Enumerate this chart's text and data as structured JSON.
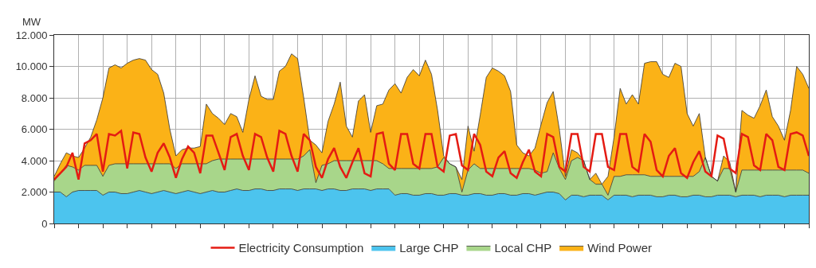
{
  "chart_data": {
    "type": "area",
    "stacked": true,
    "ylabel": "MW",
    "categories": [
      null,
      null,
      null,
      null,
      null,
      null,
      null,
      null,
      null,
      null,
      null,
      null,
      null,
      null,
      null,
      null,
      null,
      null,
      null,
      null,
      null,
      null,
      null,
      null,
      null,
      null,
      null,
      null,
      null,
      null,
      null,
      null,
      null,
      null,
      null,
      null,
      null,
      null,
      null,
      null,
      null,
      null,
      null,
      null,
      null,
      null,
      null,
      null,
      null,
      null,
      null,
      null,
      null,
      null,
      null,
      null,
      null,
      null,
      null,
      null,
      null,
      null,
      null,
      null,
      null,
      null,
      null,
      null,
      null,
      null,
      null,
      null,
      null,
      null,
      null,
      null,
      null,
      null,
      null,
      null,
      null,
      null,
      null,
      null,
      null,
      null,
      null,
      null,
      null,
      null,
      null,
      null,
      null,
      null,
      null,
      null,
      null,
      null,
      null,
      null,
      null,
      null,
      null,
      null,
      null,
      null,
      null,
      null,
      null,
      null,
      null,
      null,
      null,
      null,
      null,
      null,
      null,
      null,
      null,
      null,
      null,
      null,
      null,
      null,
      null
    ],
    "series": [
      {
        "name": "Large CHP",
        "color": "#4cc4ee",
        "values": [
          2000,
          2000,
          1700,
          2000,
          2100,
          2100,
          2100,
          2100,
          1800,
          2000,
          2000,
          1900,
          1900,
          2000,
          2100,
          2000,
          1900,
          2000,
          2100,
          2000,
          1900,
          2000,
          2100,
          2000,
          1900,
          2000,
          2100,
          2000,
          2000,
          2100,
          2200,
          2100,
          2100,
          2200,
          2200,
          2100,
          2100,
          2200,
          2200,
          2200,
          2100,
          2200,
          2200,
          2200,
          2100,
          2200,
          2200,
          2100,
          2100,
          2200,
          2200,
          2200,
          2100,
          2200,
          2200,
          2200,
          1800,
          1900,
          1900,
          1800,
          1800,
          1900,
          1900,
          1800,
          1800,
          1900,
          1900,
          1800,
          1800,
          1900,
          1900,
          1800,
          1800,
          1900,
          1900,
          1800,
          1800,
          1900,
          1900,
          1800,
          1900,
          2000,
          2000,
          1900,
          1500,
          1800,
          1800,
          1700,
          1800,
          1800,
          1800,
          1500,
          1800,
          1800,
          1800,
          1700,
          1800,
          1800,
          1800,
          1700,
          1700,
          1800,
          1800,
          1700,
          1700,
          1800,
          1800,
          1700,
          1700,
          1800,
          1800,
          1800,
          1700,
          1800,
          1800,
          1800,
          1700,
          1800,
          1800,
          1800,
          1700,
          1800,
          1800,
          1800,
          1800
        ]
      },
      {
        "name": "Local CHP",
        "color": "#a8d68a",
        "values": [
          700,
          1200,
          2000,
          1600,
          1300,
          1600,
          1600,
          1600,
          1200,
          1700,
          1800,
          1900,
          1900,
          1800,
          1700,
          1800,
          1900,
          1800,
          1700,
          1800,
          1600,
          1800,
          1700,
          1800,
          1900,
          1800,
          1900,
          2100,
          2100,
          2000,
          1900,
          2000,
          2000,
          1900,
          1900,
          2000,
          2000,
          1900,
          1900,
          1900,
          2000,
          2100,
          2500,
          400,
          1600,
          1600,
          1800,
          1900,
          1900,
          1800,
          1800,
          1800,
          1900,
          1800,
          1600,
          1300,
          1700,
          1600,
          1600,
          1700,
          1700,
          1600,
          1600,
          1800,
          2400,
          1900,
          1700,
          200,
          1600,
          1900,
          1600,
          1700,
          1700,
          1600,
          1600,
          1700,
          1700,
          1600,
          1600,
          1600,
          1300,
          1300,
          2500,
          1600,
          1300,
          2200,
          2400,
          2300,
          1000,
          700,
          700,
          300,
          1200,
          1200,
          1300,
          1400,
          1300,
          1300,
          1200,
          1300,
          1300,
          1200,
          1200,
          1300,
          1300,
          1200,
          1500,
          2500,
          1300,
          900,
          1700,
          1700,
          300,
          1600,
          1600,
          1600,
          1700,
          1600,
          1600,
          1600,
          1700,
          1600,
          1600,
          1600,
          1400
        ]
      },
      {
        "name": "Wind Power",
        "color": "#fbb217",
        "values": [
          300,
          600,
          800,
          700,
          800,
          1100,
          1800,
          2900,
          5000,
          6200,
          6300,
          6100,
          6400,
          6600,
          6700,
          6600,
          6000,
          5700,
          4500,
          2200,
          800,
          900,
          1000,
          1000,
          1100,
          3800,
          3000,
          2600,
          2200,
          2900,
          2700,
          1700,
          3800,
          5300,
          4000,
          3800,
          3800,
          5600,
          5900,
          6700,
          6400,
          3700,
          600,
          2400,
          800,
          2700,
          3600,
          5000,
          2200,
          1500,
          3800,
          4200,
          1800,
          3500,
          3800,
          5000,
          5400,
          4800,
          5800,
          6300,
          5900,
          6900,
          6000,
          3600,
          100,
          0,
          0,
          800,
          2800,
          800,
          3400,
          5800,
          6400,
          6200,
          5900,
          4900,
          1500,
          1000,
          800,
          1400,
          3100,
          4400,
          3900,
          2500,
          200,
          700,
          300,
          0,
          0,
          700,
          0,
          1200,
          2500,
          5600,
          4500,
          5100,
          4500,
          7100,
          7300,
          7300,
          6500,
          6300,
          7200,
          7000,
          4000,
          3200,
          3700,
          0,
          0,
          0,
          800,
          400,
          0,
          3800,
          3500,
          3300,
          4100,
          5100,
          3400,
          2800,
          1900,
          3800,
          6600,
          6100,
          5400
        ]
      },
      {
        "name": "Electricity Consumption",
        "type": "line",
        "color": "#e41b13",
        "values": [
          2800,
          3200,
          3600,
          4500,
          2800,
          5100,
          5300,
          5700,
          3300,
          5700,
          5600,
          5900,
          3500,
          5800,
          5700,
          4200,
          3300,
          4500,
          5100,
          4200,
          2900,
          4100,
          4900,
          4500,
          3200,
          5600,
          5600,
          4500,
          3400,
          5500,
          5700,
          4300,
          3400,
          5700,
          5500,
          4200,
          3300,
          5900,
          5700,
          4300,
          3300,
          5700,
          5300,
          3600,
          2900,
          4100,
          4800,
          3600,
          2900,
          3900,
          4800,
          3200,
          3000,
          5700,
          5800,
          3800,
          3400,
          5700,
          5700,
          3800,
          3500,
          5700,
          5700,
          3600,
          3300,
          5600,
          5700,
          3700,
          3400,
          5700,
          5000,
          3300,
          3000,
          4200,
          4600,
          3200,
          2900,
          3900,
          4700,
          3300,
          3000,
          5700,
          5500,
          3600,
          3300,
          5700,
          5700,
          3600,
          3300,
          5700,
          5700,
          3600,
          3400,
          5700,
          5700,
          3600,
          3300,
          5700,
          5200,
          3400,
          3000,
          4300,
          4800,
          3200,
          2900,
          3900,
          4600,
          3300,
          3000,
          5600,
          5400,
          3500,
          3200,
          5700,
          5500,
          3700,
          3400,
          5700,
          5300,
          3600,
          3400,
          5700,
          5800,
          5600,
          4300
        ]
      }
    ],
    "ylim": [
      0,
      12000
    ],
    "yticks": [
      0,
      {
        "value": 2000,
        "label": "2.000"
      },
      {
        "value": 4000,
        "label": "4.000"
      },
      {
        "value": 6000,
        "label": "6.000"
      },
      {
        "value": 8000,
        "label": "8.000"
      },
      {
        "value": 10000,
        "label": "10.000"
      },
      {
        "value": 12000,
        "label": "12.000"
      }
    ],
    "tick_labels": "y",
    "grid": true,
    "legend": "bottom"
  }
}
